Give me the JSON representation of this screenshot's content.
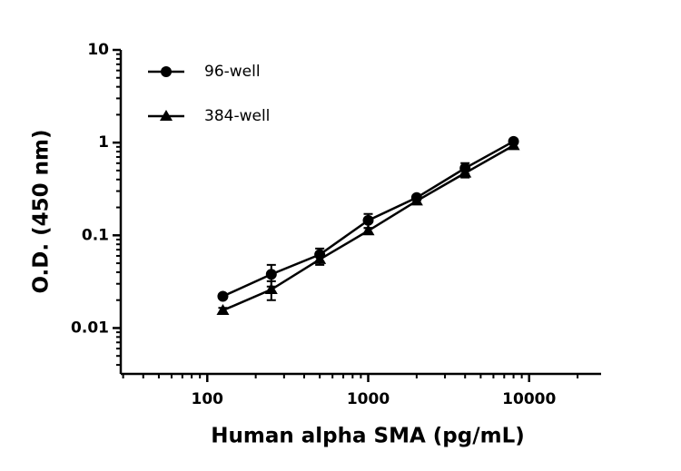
{
  "chart_data": {
    "type": "line",
    "xlabel": "Human alpha SMA (pg/mL)",
    "ylabel": "O.D. (450 nm)",
    "x": [
      125,
      250,
      500,
      1000,
      2000,
      4000,
      8000
    ],
    "series": [
      {
        "name": "96-well",
        "color": "#000000",
        "marker": "circle",
        "values": [
          0.022,
          0.038,
          0.062,
          0.145,
          0.255,
          0.53,
          1.03
        ],
        "errors": [
          0.001,
          0.01,
          0.01,
          0.025,
          0.015,
          0.07,
          0.05
        ]
      },
      {
        "name": "384-well",
        "color": "#000000",
        "marker": "triangle",
        "values": [
          0.0155,
          0.026,
          0.055,
          0.112,
          0.235,
          0.47,
          0.93
        ],
        "errors": [
          0.001,
          0.006,
          0.007,
          0.008,
          0.015,
          0.05,
          0.04
        ]
      }
    ],
    "xscale": "log",
    "yscale": "log",
    "xlim": [
      29,
      28000
    ],
    "ylim": [
      0.0032,
      10
    ],
    "xticks": [
      100,
      1000,
      10000
    ],
    "yticks": [
      0.01,
      0.1,
      1,
      10
    ],
    "xminorticks": [
      30,
      40,
      50,
      60,
      70,
      80,
      90,
      200,
      300,
      400,
      500,
      600,
      700,
      800,
      900,
      2000,
      3000,
      4000,
      5000,
      6000,
      7000,
      8000,
      9000,
      20000
    ],
    "yminorticks": [
      0.004,
      0.005,
      0.006,
      0.007,
      0.008,
      0.009,
      0.02,
      0.03,
      0.04,
      0.05,
      0.06,
      0.07,
      0.08,
      0.09,
      0.2,
      0.3,
      0.4,
      0.5,
      0.6,
      0.7,
      0.8,
      0.9,
      2,
      3,
      4,
      5,
      6,
      7,
      8,
      9
    ],
    "legend": "top-left"
  }
}
